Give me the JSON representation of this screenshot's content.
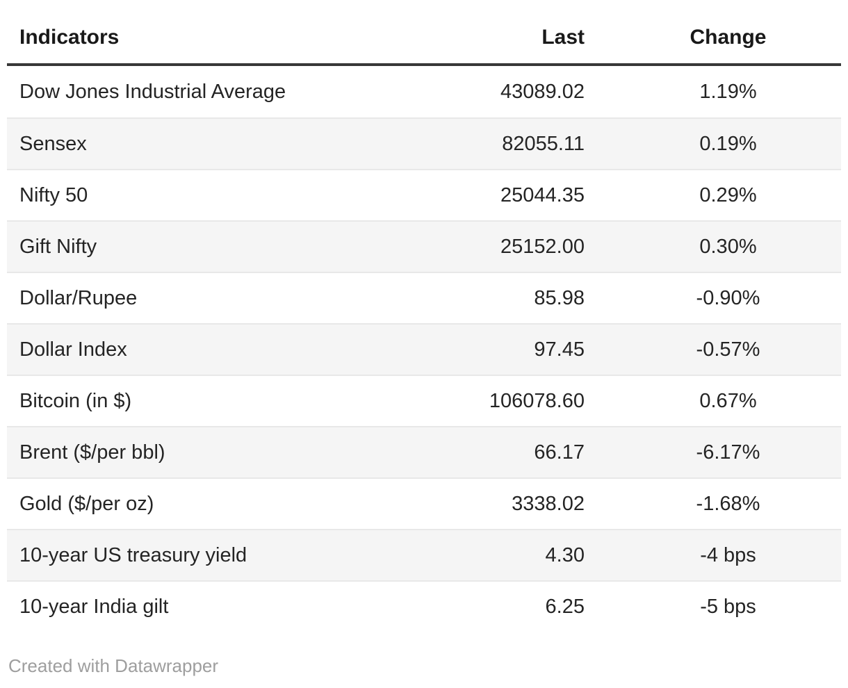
{
  "chart_data": {
    "type": "table",
    "title": "",
    "columns": [
      {
        "label": "Indicators",
        "align": "left"
      },
      {
        "label": "Last",
        "align": "right"
      },
      {
        "label": "Change",
        "align": "center"
      }
    ],
    "rows": [
      {
        "indicator": "Dow Jones Industrial Average",
        "last": "43089.02",
        "change": "1.19%"
      },
      {
        "indicator": "Sensex",
        "last": "82055.11",
        "change": "0.19%"
      },
      {
        "indicator": "Nifty 50",
        "last": "25044.35",
        "change": "0.29%"
      },
      {
        "indicator": "Gift Nifty",
        "last": "25152.00",
        "change": "0.30%"
      },
      {
        "indicator": "Dollar/Rupee",
        "last": "85.98",
        "change": "-0.90%"
      },
      {
        "indicator": "Dollar Index",
        "last": "97.45",
        "change": "-0.57%"
      },
      {
        "indicator": "Bitcoin (in $)",
        "last": "106078.60",
        "change": "0.67%"
      },
      {
        "indicator": "Brent ($/per bbl)",
        "last": "66.17",
        "change": "-6.17%"
      },
      {
        "indicator": "Gold ($/per oz)",
        "last": "3338.02",
        "change": "-1.68%"
      },
      {
        "indicator": "10-year US treasury yield",
        "last": "4.30",
        "change": "-4 bps"
      },
      {
        "indicator": "10-year India gilt",
        "last": "6.25",
        "change": "-5 bps"
      }
    ],
    "zebra_striping": true,
    "grid": "row-borders",
    "legend_position": "none"
  },
  "footer": {
    "credit": "Created with Datawrapper"
  },
  "colors": {
    "background": "#ffffff",
    "header_rule": "#383838",
    "row_border": "#e8e8e8",
    "stripe": "#f5f5f5",
    "text": "#242424",
    "header_text": "#191919",
    "footer_text": "#9e9e9e"
  }
}
